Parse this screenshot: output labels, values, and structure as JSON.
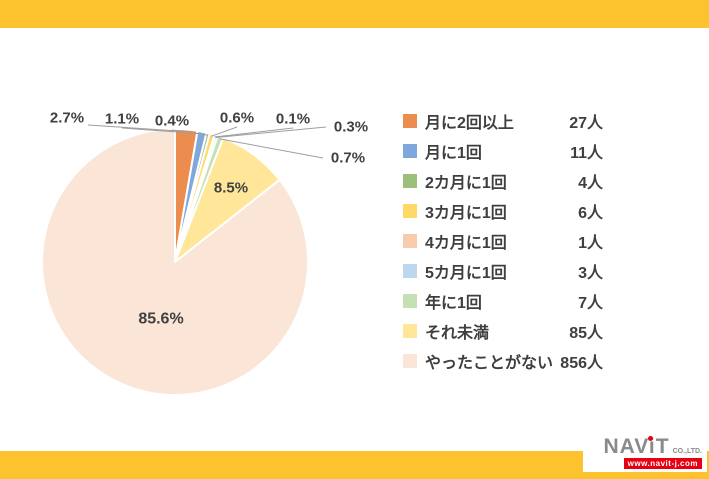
{
  "page": {
    "banner_color": "#FCC32F",
    "background_color": "#FFFFFF",
    "text_color": "#404040"
  },
  "chart_data": {
    "type": "pie",
    "title": "",
    "categories": [
      "月に2回以上",
      "月に1回",
      "2カ月に1回",
      "3カ月に1回",
      "4カ月に1回",
      "5カ月に1回",
      "年に1回",
      "それ未満",
      "やったことがない"
    ],
    "values": [
      2.7,
      1.1,
      0.4,
      0.6,
      0.1,
      0.3,
      0.7,
      8.5,
      85.6
    ],
    "counts": [
      27,
      11,
      4,
      6,
      1,
      3,
      7,
      85,
      856
    ],
    "count_labels": [
      "27人",
      "11人",
      "4人",
      "6人",
      "1人",
      "3人",
      "7人",
      "85人",
      "856人"
    ],
    "percent_labels": [
      "2.7%",
      "1.1%",
      "0.4%",
      "0.6%",
      "0.1%",
      "0.3%",
      "0.7%",
      "8.5%",
      "85.6%"
    ],
    "colors": [
      "#ED8C4F",
      "#7FA7DB",
      "#9BC07A",
      "#FFD965",
      "#F7CBAC",
      "#BDD7EE",
      "#C5E0B4",
      "#FFE699",
      "#FBE5D6"
    ],
    "legend_position": "right",
    "start_angle": "top",
    "direction": "clockwise",
    "leader_line_color": "#9E9E9E"
  },
  "logo": {
    "name": "NAViT",
    "suffix": "CO.,LTD.",
    "url": "www.navit-j.com",
    "brand_red": "#E60012"
  }
}
